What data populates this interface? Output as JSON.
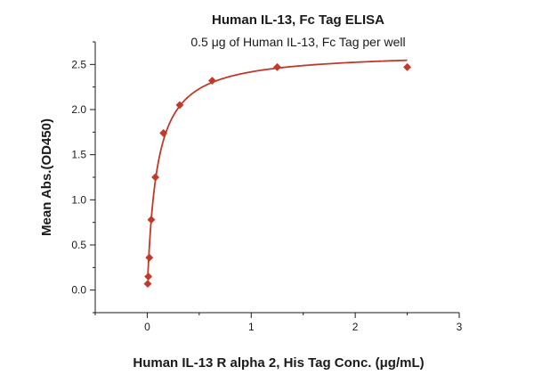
{
  "chart_data": {
    "type": "scatter",
    "title": "Human IL-13, Fc Tag ELISA",
    "subtitle": "0.5 μg of Human IL-13, Fc Tag per well",
    "xlabel": "Human IL-13 R alpha 2, His Tag Conc. (μg/mL)",
    "ylabel": "Mean Abs.(OD450)",
    "xlim": [
      -0.5,
      3
    ],
    "ylim": [
      -0.25,
      2.75
    ],
    "x_ticks": [
      0,
      1,
      2,
      3
    ],
    "y_ticks": [
      0.0,
      0.5,
      1.0,
      1.5,
      2.0,
      2.5
    ],
    "x_tick_labels": [
      "0",
      "1",
      "2",
      "3"
    ],
    "y_tick_labels": [
      "0.0",
      "0.5",
      "1.0",
      "1.5",
      "2.0",
      "2.5"
    ],
    "grid": false,
    "color": "#c0392b",
    "marker": "diamond",
    "series": [
      {
        "x": [
          0.005,
          0.01,
          0.02,
          0.039,
          0.078,
          0.156,
          0.3125,
          0.625,
          1.25,
          2.5
        ],
        "y": [
          0.07,
          0.15,
          0.36,
          0.78,
          1.25,
          1.74,
          2.05,
          2.32,
          2.47,
          2.47
        ],
        "fit": "hyperbolic"
      }
    ]
  }
}
